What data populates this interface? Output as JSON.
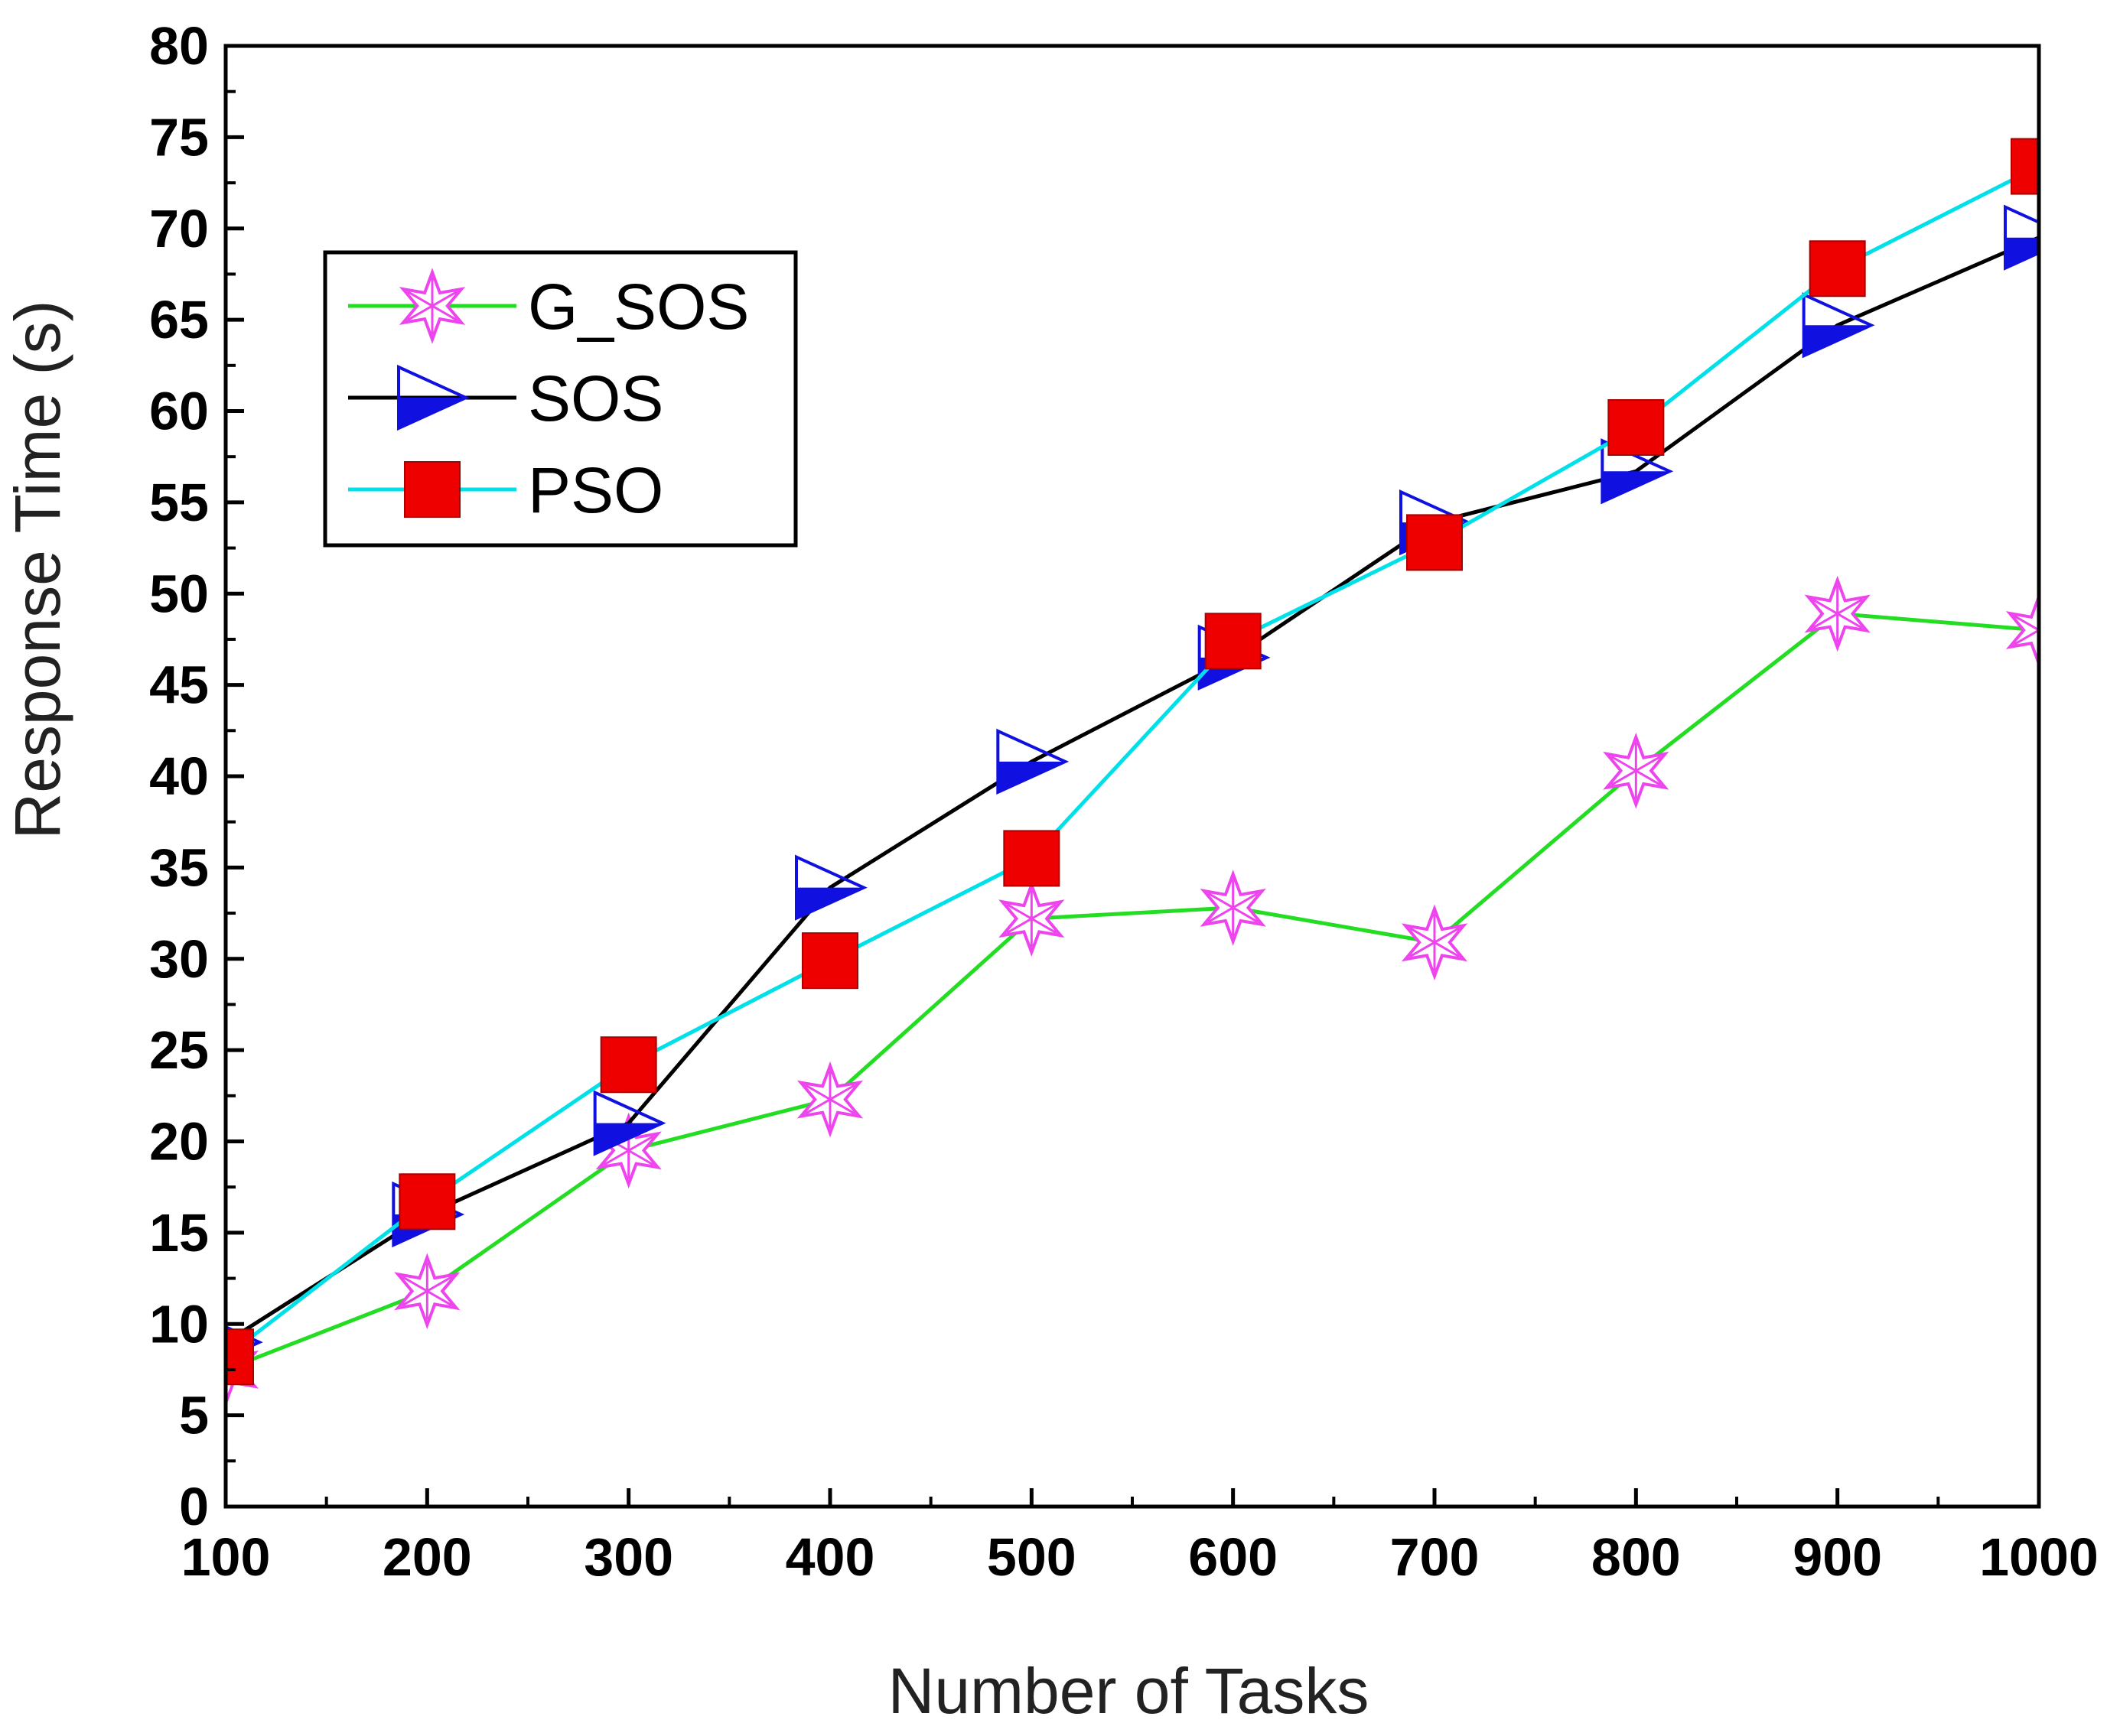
{
  "chart_data": {
    "type": "line",
    "title": "",
    "xlabel": "Number of Tasks",
    "ylabel": "Response Time (s)",
    "xlim": [
      100,
      1000
    ],
    "ylim": [
      0,
      80
    ],
    "x": [
      100,
      200,
      300,
      400,
      500,
      600,
      700,
      800,
      900,
      1000
    ],
    "x_ticks": [
      "100",
      "200",
      "300",
      "400",
      "500",
      "600",
      "700",
      "800",
      "900",
      "1000"
    ],
    "y_ticks": [
      "0",
      "5",
      "10",
      "15",
      "20",
      "25",
      "30",
      "35",
      "40",
      "45",
      "50",
      "55",
      "60",
      "65",
      "70",
      "75",
      "80"
    ],
    "grid": false,
    "legend_position": "upper-left",
    "series": [
      {
        "name": "G_SOS",
        "line_color": "#22dd22",
        "marker_color": "#ee44ee",
        "marker": "star",
        "values": [
          7.5,
          11.8,
          19.5,
          22.3,
          32.2,
          32.8,
          30.9,
          40.3,
          48.9,
          48.0
        ]
      },
      {
        "name": "SOS",
        "line_color": "#000000",
        "marker_color": "#1010e0",
        "marker": "half-triangle-right",
        "values": [
          9,
          16,
          21,
          33.9,
          40.8,
          46.5,
          53.9,
          56.7,
          64.7,
          69.5
        ]
      },
      {
        "name": "PSO",
        "line_color": "#00e0e8",
        "marker_color": "#ee0000",
        "marker": "square",
        "values": [
          8.2,
          16.7,
          24.2,
          29.9,
          35.5,
          47.4,
          52.8,
          59.1,
          67.8,
          73.4
        ]
      }
    ]
  }
}
